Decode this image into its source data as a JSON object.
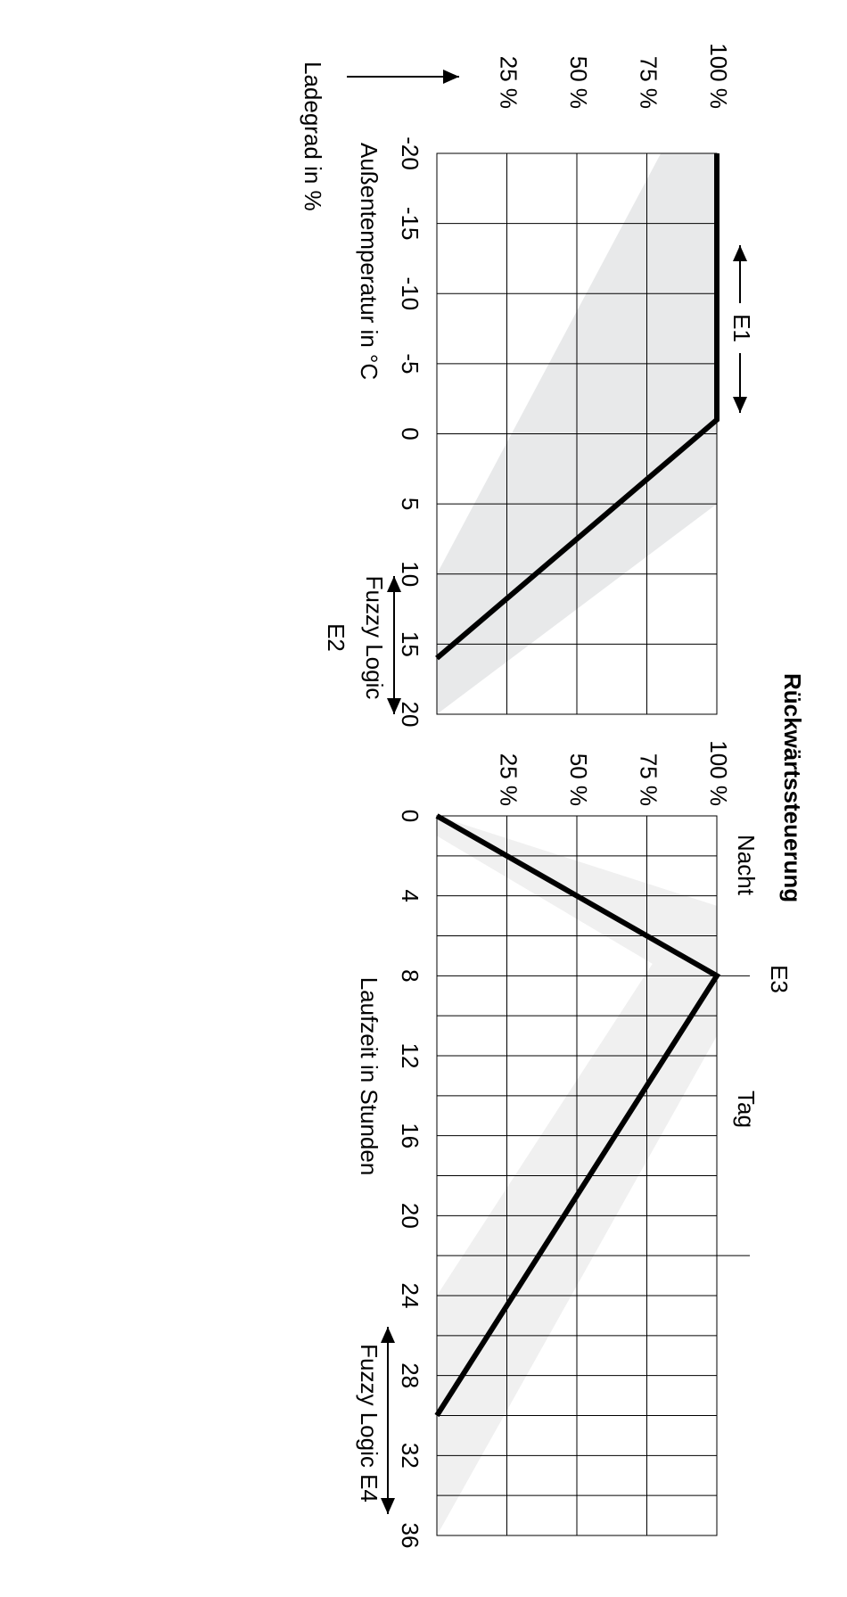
{
  "chart_data": [
    {
      "type": "line",
      "x_label": "Außentemperatur in °C",
      "y_label": "Ladegrad in %",
      "xlim": [
        -20,
        20
      ],
      "xticks": [
        -20,
        -15,
        -10,
        -5,
        0,
        5,
        10,
        15,
        20
      ],
      "ylim": [
        0,
        100
      ],
      "yticks": [
        {
          "value": 25,
          "label": "25 %"
        },
        {
          "value": 50,
          "label": "50 %"
        },
        {
          "value": 75,
          "label": "75 %"
        },
        {
          "value": 100,
          "label": "100 %"
        }
      ],
      "x": [
        -20,
        -1,
        16
      ],
      "values": [
        100,
        100,
        0
      ],
      "color": "#000000",
      "band": {
        "x": [
          -20,
          5,
          20,
          10,
          -20
        ],
        "values": [
          100,
          100,
          0,
          0,
          80
        ],
        "color": "#e8e9ea"
      },
      "annotations": [
        "E1",
        "Fuzzy Logic",
        "E2"
      ]
    },
    {
      "type": "line",
      "title": "Rückwärtssteuerung",
      "x_label": "Laufzeit in Stunden",
      "xlim": [
        0,
        36
      ],
      "xticks": [
        0,
        4,
        8,
        12,
        16,
        20,
        24,
        28,
        32,
        36
      ],
      "xminor_ticks": [
        2,
        6,
        10,
        14,
        18,
        22,
        26,
        30,
        34
      ],
      "ylim": [
        0,
        100
      ],
      "yticks": [
        {
          "value": 25,
          "label": "25 %"
        },
        {
          "value": 50,
          "label": "50 %"
        },
        {
          "value": 75,
          "label": "75 %"
        },
        {
          "value": 100,
          "label": "100 %"
        }
      ],
      "x": [
        0,
        8,
        30
      ],
      "values": [
        0,
        100,
        0
      ],
      "color": "#000000",
      "band": {
        "x": [
          0,
          4.5,
          11,
          36,
          24,
          7.4,
          1
        ],
        "values": [
          0,
          100,
          100,
          0,
          0,
          77,
          0
        ],
        "color": "#f0f0f0"
      },
      "markers": [
        8,
        22
      ],
      "annotations": [
        "Nacht",
        "Tag",
        "E3",
        "Fuzzy Logic  E4"
      ]
    }
  ]
}
